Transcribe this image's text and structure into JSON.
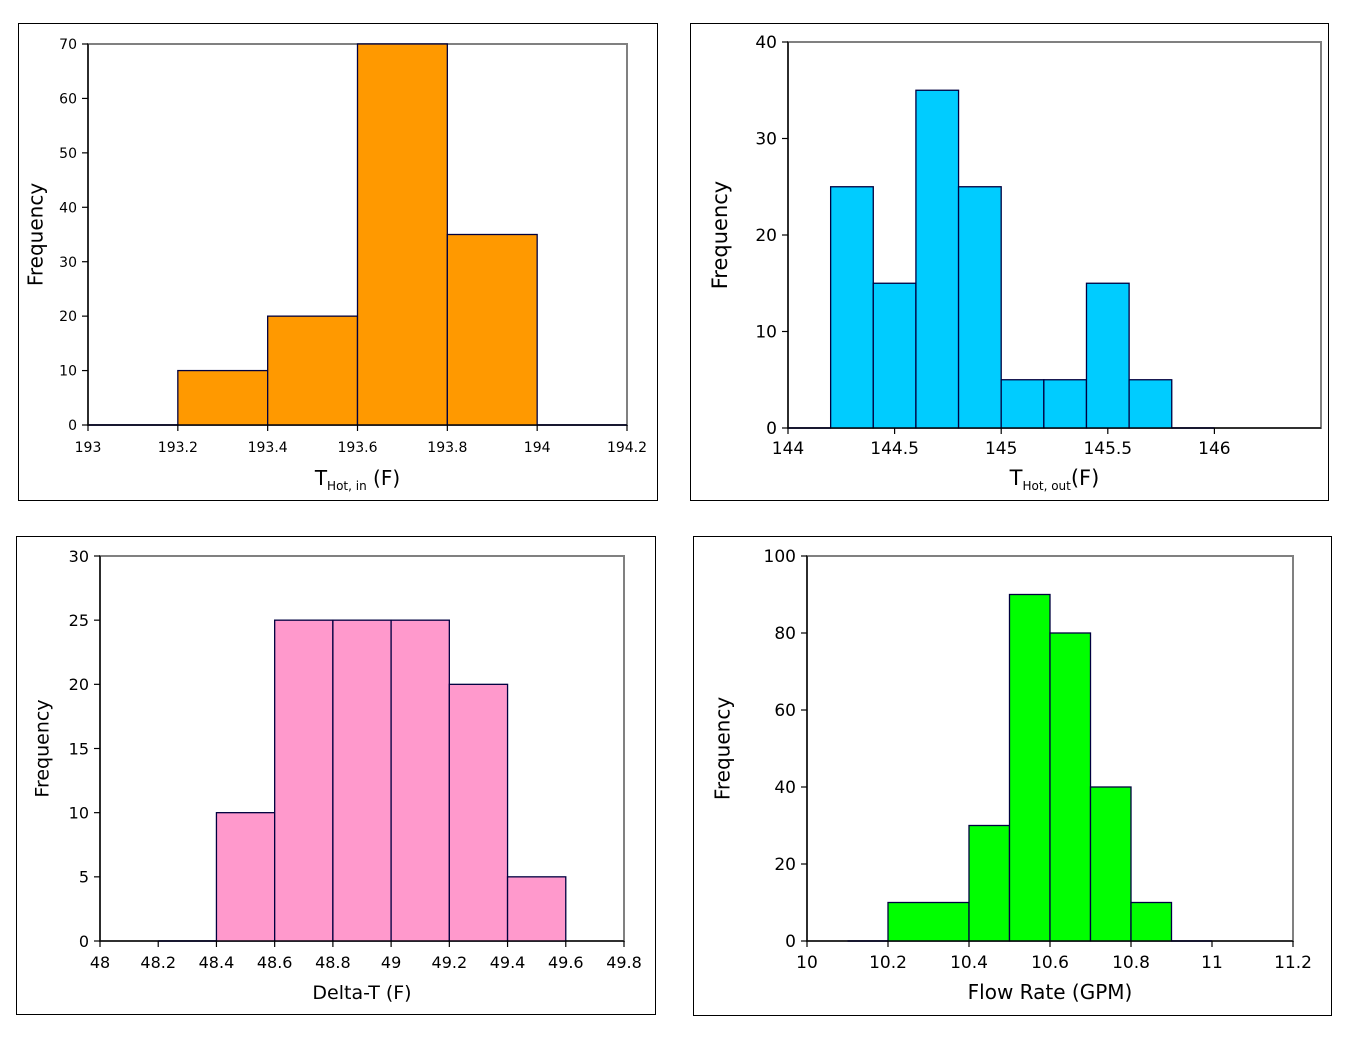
{
  "chart_data": [
    {
      "type": "bar",
      "histogram": true,
      "color": "#FF9900",
      "xlabel": "T",
      "xlabel_sub": "Hot, in",
      "xlabel_suffix": " (F)",
      "ylabel": "Frequency",
      "xlim": [
        193,
        194.2
      ],
      "ylim": [
        0,
        70
      ],
      "xticks": [
        "193",
        "193.2",
        "193.4",
        "193.6",
        "193.8",
        "194",
        "194.2"
      ],
      "yticks": [
        "0",
        "10",
        "20",
        "30",
        "40",
        "50",
        "60",
        "70"
      ],
      "bins": [
        {
          "x0": 193.0,
          "x1": 193.2,
          "value": 0
        },
        {
          "x0": 193.2,
          "x1": 193.4,
          "value": 10
        },
        {
          "x0": 193.4,
          "x1": 193.6,
          "value": 20
        },
        {
          "x0": 193.6,
          "x1": 193.8,
          "value": 70
        },
        {
          "x0": 193.8,
          "x1": 194.0,
          "value": 35
        },
        {
          "x0": 194.0,
          "x1": 194.2,
          "value": 0
        }
      ],
      "grid": false
    },
    {
      "type": "bar",
      "histogram": true,
      "color": "#00CCFF",
      "xlabel": "T",
      "xlabel_sub": "Hot, out",
      "xlabel_suffix": "(F)",
      "ylabel": "Frequency",
      "xlim": [
        144,
        146.5
      ],
      "ylim": [
        0,
        40
      ],
      "xticks": [
        "144",
        "144.5",
        "145",
        "145.5",
        "146"
      ],
      "yticks": [
        "0",
        "10",
        "20",
        "30",
        "40"
      ],
      "bins": [
        {
          "x0": 144.0,
          "x1": 144.2,
          "value": 0
        },
        {
          "x0": 144.2,
          "x1": 144.4,
          "value": 25
        },
        {
          "x0": 144.4,
          "x1": 144.6,
          "value": 15
        },
        {
          "x0": 144.6,
          "x1": 144.8,
          "value": 35
        },
        {
          "x0": 144.8,
          "x1": 145.0,
          "value": 25
        },
        {
          "x0": 145.0,
          "x1": 145.2,
          "value": 5
        },
        {
          "x0": 145.2,
          "x1": 145.4,
          "value": 5
        },
        {
          "x0": 145.4,
          "x1": 145.6,
          "value": 15
        },
        {
          "x0": 145.6,
          "x1": 145.8,
          "value": 5
        },
        {
          "x0": 145.8,
          "x1": 146.0,
          "value": 0
        }
      ],
      "grid": false
    },
    {
      "type": "bar",
      "histogram": true,
      "color": "#FF99CC",
      "xlabel": "Delta-T (F)",
      "xlabel_sub": "",
      "xlabel_suffix": "",
      "ylabel": "Frequency",
      "xlim": [
        48,
        49.8
      ],
      "ylim": [
        0,
        30
      ],
      "xticks": [
        "48",
        "48.2",
        "48.4",
        "48.6",
        "48.8",
        "49",
        "49.2",
        "49.4",
        "49.6",
        "49.8"
      ],
      "yticks": [
        "0",
        "5",
        "10",
        "15",
        "20",
        "25",
        "30"
      ],
      "bins": [
        {
          "x0": 48.2,
          "x1": 48.4,
          "value": 0
        },
        {
          "x0": 48.4,
          "x1": 48.6,
          "value": 10
        },
        {
          "x0": 48.6,
          "x1": 48.8,
          "value": 25
        },
        {
          "x0": 48.8,
          "x1": 49.0,
          "value": 25
        },
        {
          "x0": 49.0,
          "x1": 49.2,
          "value": 25
        },
        {
          "x0": 49.2,
          "x1": 49.4,
          "value": 20
        },
        {
          "x0": 49.4,
          "x1": 49.6,
          "value": 5
        }
      ],
      "grid": false
    },
    {
      "type": "bar",
      "histogram": true,
      "color": "#00FF00",
      "xlabel": "Flow Rate (GPM)",
      "xlabel_sub": "",
      "xlabel_suffix": "",
      "ylabel": "Frequency",
      "xlim": [
        10,
        11.2
      ],
      "ylim": [
        0,
        100
      ],
      "xticks": [
        "10",
        "10.2",
        "10.4",
        "10.6",
        "10.8",
        "11",
        "11.2"
      ],
      "yticks": [
        "0",
        "20",
        "40",
        "60",
        "80",
        "100"
      ],
      "bins": [
        {
          "x0": 10.1,
          "x1": 10.2,
          "value": 0
        },
        {
          "x0": 10.2,
          "x1": 10.4,
          "value": 10
        },
        {
          "x0": 10.4,
          "x1": 10.5,
          "value": 30
        },
        {
          "x0": 10.5,
          "x1": 10.6,
          "value": 90
        },
        {
          "x0": 10.6,
          "x1": 10.7,
          "value": 80
        },
        {
          "x0": 10.7,
          "x1": 10.8,
          "value": 40
        },
        {
          "x0": 10.8,
          "x1": 10.9,
          "value": 10
        },
        {
          "x0": 10.9,
          "x1": 11.0,
          "value": 0
        }
      ],
      "grid": false
    }
  ]
}
